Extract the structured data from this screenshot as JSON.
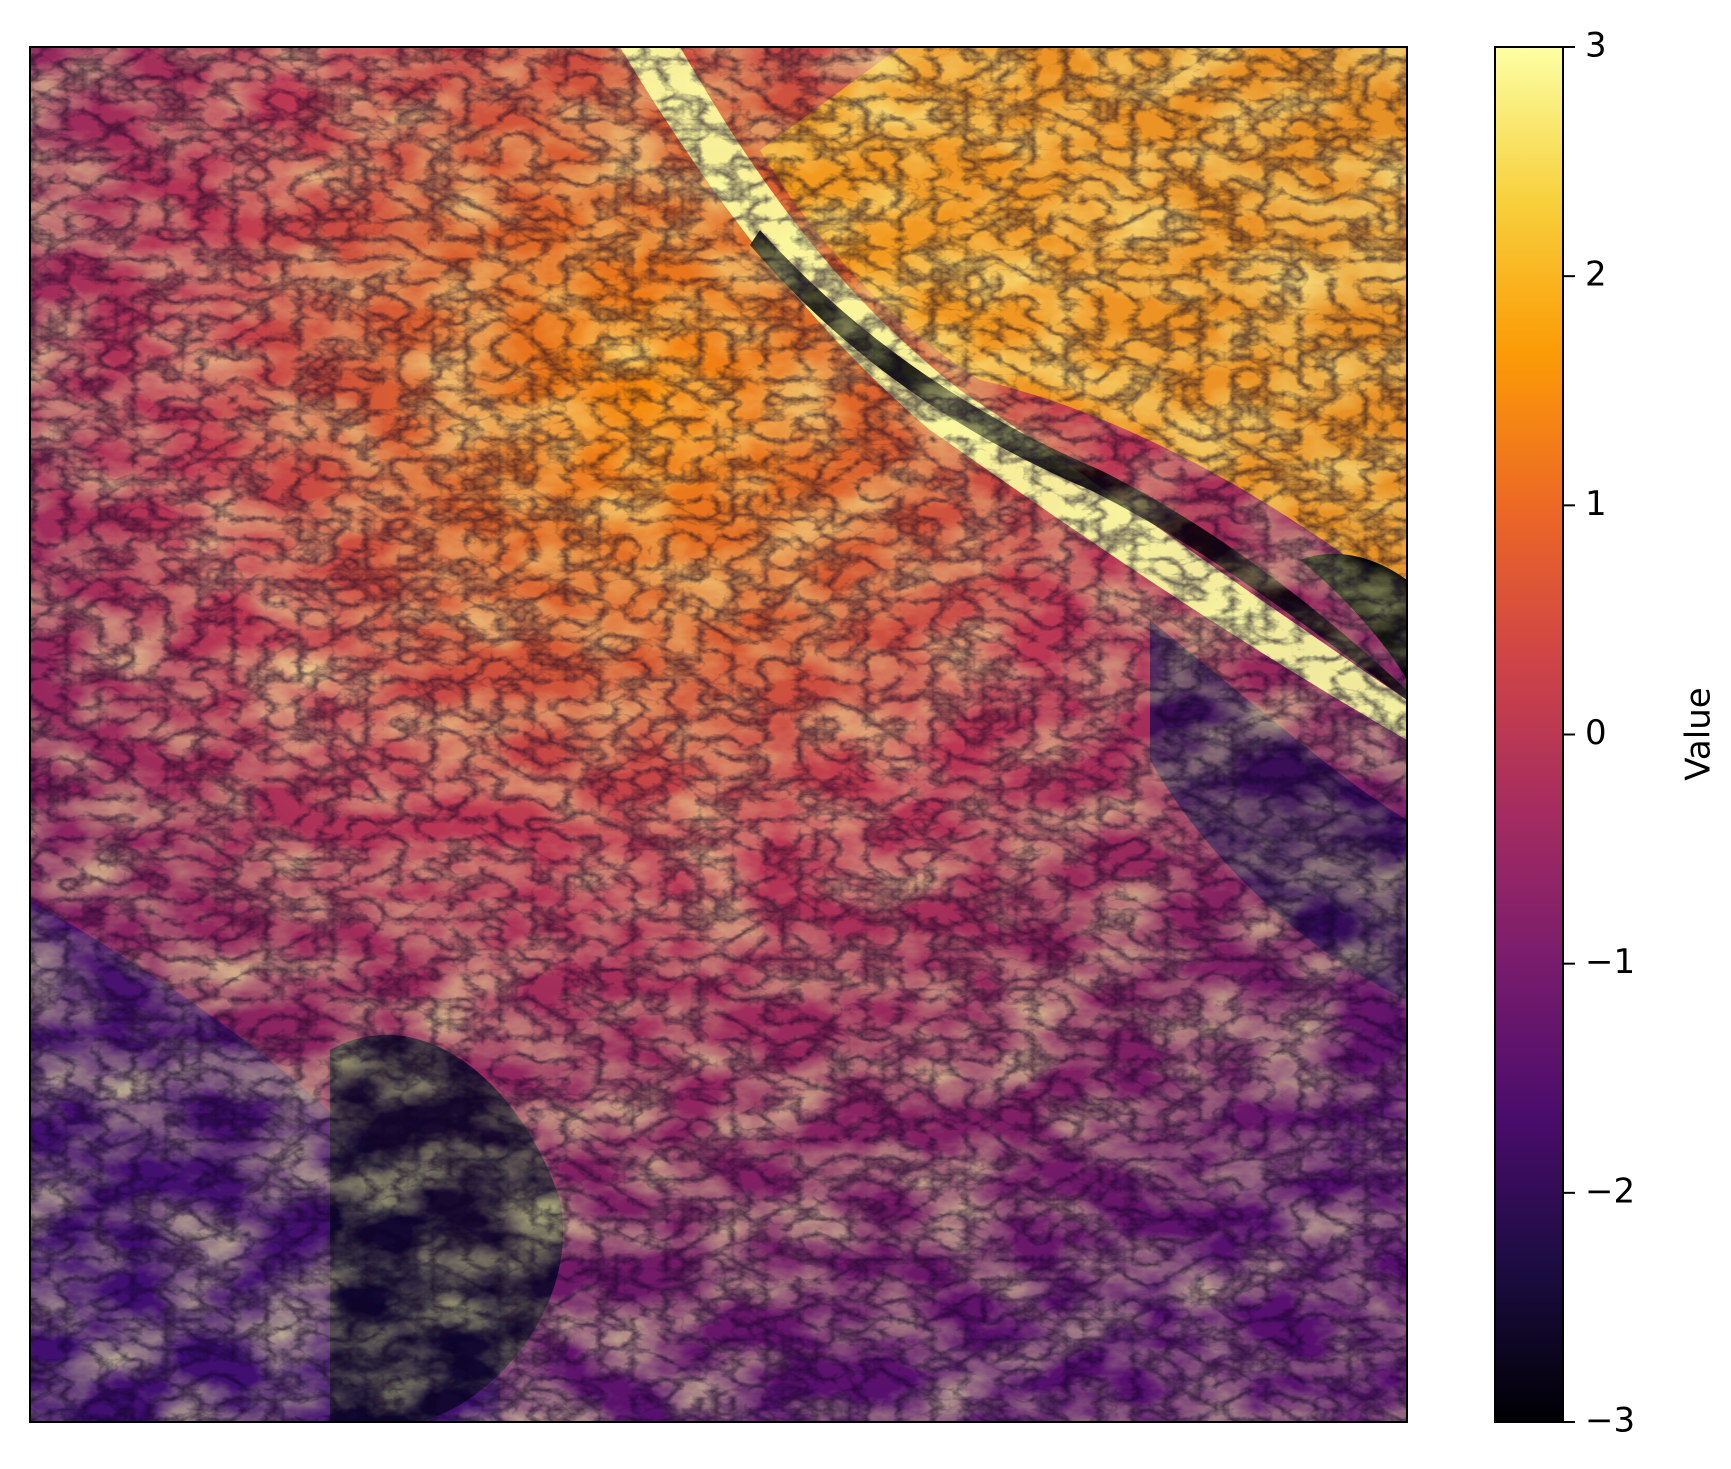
{
  "chart_data": {
    "type": "heatmap",
    "title": "",
    "xlabel": "",
    "ylabel": "",
    "x_ticks_visible": false,
    "y_ticks_visible": false,
    "colormap": "inferno",
    "colormap_stops": [
      "#000004",
      "#1b0c41",
      "#4a0c6b",
      "#781c6d",
      "#a52c60",
      "#cf4446",
      "#ed6925",
      "#fb9b06",
      "#f7d13d",
      "#fcffa4"
    ],
    "colorbar": {
      "label": "Value",
      "range": [
        -3,
        3
      ],
      "ticks": [
        3,
        2,
        1,
        0,
        -1,
        -2,
        -3
      ],
      "tick_labels": [
        "3",
        "2",
        "1",
        "0",
        "−1",
        "−2",
        "−3"
      ]
    },
    "description_of_field": "terrain-like field with bright ridges and dark dendritic valleys; brightest band runs diagonally from top-center toward the right edge; darkest regions in lower-center and along the right edge mid-height"
  }
}
